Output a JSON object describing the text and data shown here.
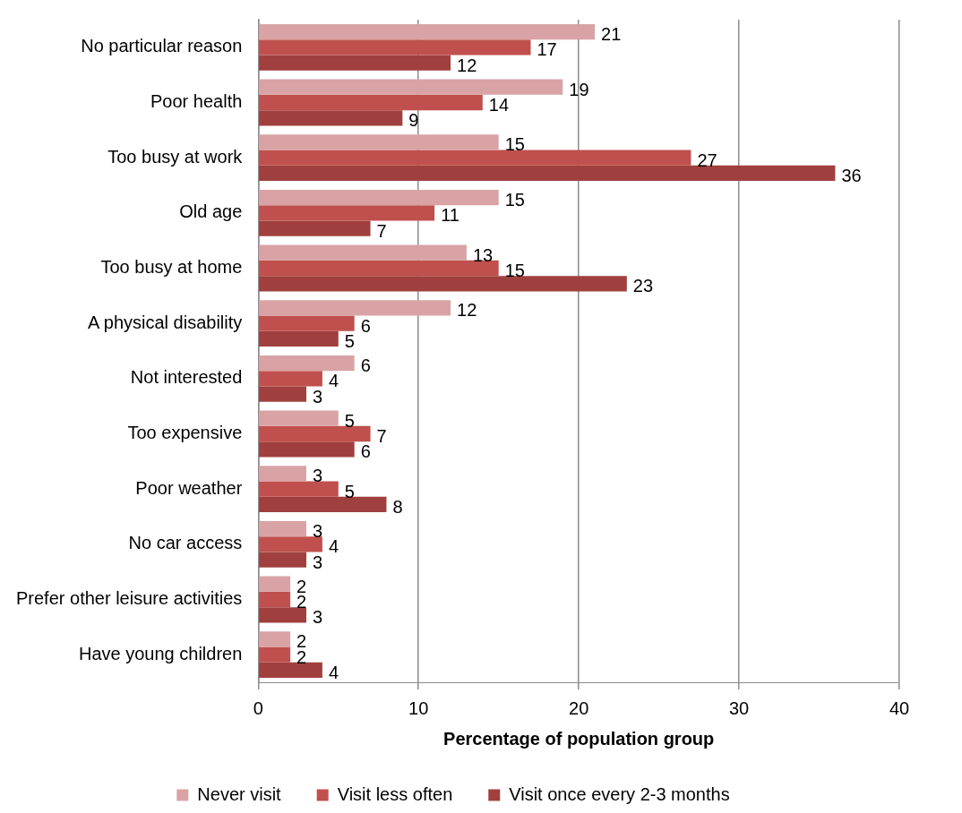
{
  "chart_data": {
    "type": "bar",
    "orientation": "horizontal",
    "xlabel": "Percentage of population group",
    "categories": [
      "No particular reason",
      "Poor health",
      "Too busy at work",
      "Old age",
      "Too busy at home",
      "A physical disability",
      "Not interested",
      "Too expensive",
      "Poor weather",
      "No car access",
      "Prefer other leisure activities",
      "Have young children"
    ],
    "series": [
      {
        "name": "Never visit",
        "color": "#d9a3a5",
        "values": [
          21,
          19,
          15,
          15,
          13,
          12,
          6,
          5,
          3,
          3,
          2,
          2
        ]
      },
      {
        "name": "Visit less often",
        "color": "#c0504d",
        "values": [
          17,
          14,
          27,
          11,
          15,
          6,
          4,
          7,
          5,
          4,
          2,
          2
        ]
      },
      {
        "name": "Visit once every 2-3 months",
        "color": "#a0403e",
        "values": [
          12,
          9,
          36,
          7,
          23,
          5,
          3,
          6,
          8,
          3,
          3,
          4
        ]
      }
    ],
    "xlim": [
      0,
      40
    ],
    "xticks": [
      0,
      10,
      20,
      30,
      40
    ],
    "grid": "x",
    "legend": "bottom",
    "data_labels": true
  }
}
